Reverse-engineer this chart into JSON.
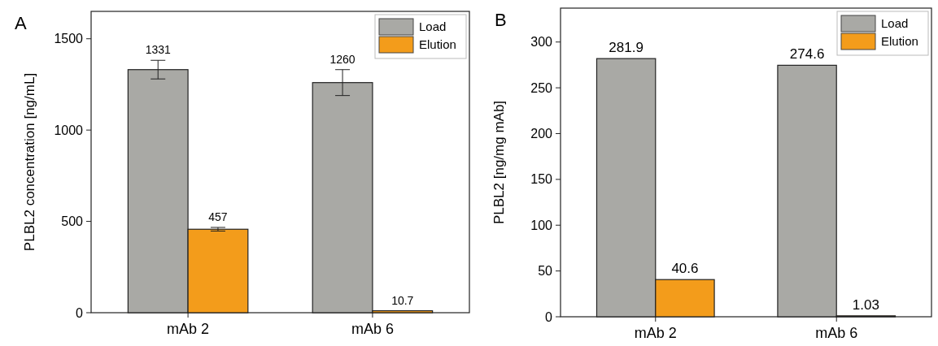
{
  "chart_data": [
    {
      "type": "bar",
      "ylabel": "PLBL2 concentration [ng/mL]",
      "annotations": [
        "A"
      ],
      "categories": [
        "mAb 2",
        "mAb 6"
      ],
      "series": [
        {
          "name": "Load",
          "color": "#a9a9a5",
          "values": [
            1331,
            1260
          ],
          "errors": [
            51,
            71
          ]
        },
        {
          "name": "Elution",
          "color": "#f39c1b",
          "values": [
            457,
            10.7
          ],
          "errors": [
            10,
            null
          ]
        }
      ],
      "ylim": [
        0,
        1650
      ],
      "yticks": [
        0,
        500,
        1000,
        1500
      ],
      "data_labels": true,
      "legend": "top right"
    },
    {
      "type": "bar",
      "ylabel": "PLBL2 [ng/mg mAb]",
      "annotations": [
        "B"
      ],
      "categories": [
        "mAb 2",
        "mAb 6"
      ],
      "series": [
        {
          "name": "Load",
          "color": "#a9a9a5",
          "values": [
            281.9,
            274.6
          ]
        },
        {
          "name": "Elution",
          "color": "#f39c1b",
          "values": [
            40.6,
            1.03
          ]
        }
      ],
      "ylim": [
        0,
        337
      ],
      "yticks": [
        0,
        50,
        100,
        150,
        200,
        250,
        300
      ],
      "data_labels": true,
      "legend": "top right"
    }
  ]
}
